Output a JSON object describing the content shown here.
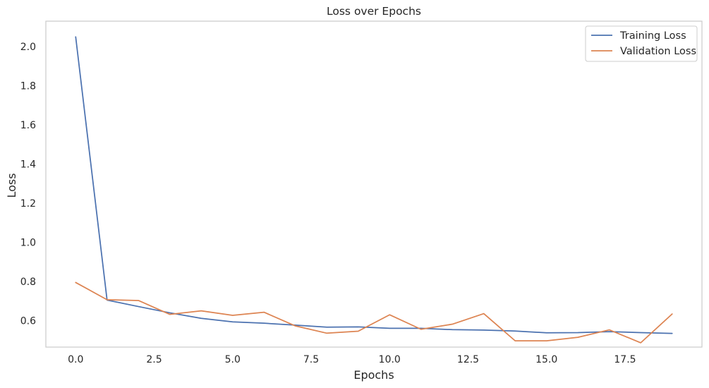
{
  "chart_data": {
    "type": "line",
    "title": "Loss over Epochs",
    "xlabel": "Epochs",
    "ylabel": "Loss",
    "xlim": [
      -0.95,
      19.95
    ],
    "ylim": [
      0.465,
      2.13
    ],
    "xticks": [
      0.0,
      2.5,
      5.0,
      7.5,
      10.0,
      12.5,
      15.0,
      17.5
    ],
    "xtick_labels": [
      "0.0",
      "2.5",
      "5.0",
      "7.5",
      "10.0",
      "12.5",
      "15.0",
      "17.5"
    ],
    "yticks": [
      0.6,
      0.8,
      1.0,
      1.2,
      1.4,
      1.6,
      1.8,
      2.0
    ],
    "ytick_labels": [
      "0.6",
      "0.8",
      "1.0",
      "1.2",
      "1.4",
      "1.6",
      "1.8",
      "2.0"
    ],
    "grid": false,
    "legend_position": "top-right",
    "x": [
      0,
      1,
      2,
      3,
      4,
      5,
      6,
      7,
      8,
      9,
      10,
      11,
      12,
      13,
      14,
      15,
      16,
      17,
      18,
      19
    ],
    "series": [
      {
        "name": "Training Loss",
        "color": "#4c72b0",
        "values": [
          2.05,
          0.705,
          0.672,
          0.64,
          0.612,
          0.594,
          0.587,
          0.577,
          0.567,
          0.568,
          0.561,
          0.561,
          0.554,
          0.552,
          0.547,
          0.538,
          0.539,
          0.544,
          0.539,
          0.535
        ]
      },
      {
        "name": "Validation Loss",
        "color": "#dd8452",
        "values": [
          0.795,
          0.707,
          0.703,
          0.632,
          0.65,
          0.627,
          0.643,
          0.573,
          0.536,
          0.546,
          0.63,
          0.556,
          0.582,
          0.636,
          0.497,
          0.497,
          0.515,
          0.553,
          0.487,
          0.634
        ]
      }
    ]
  }
}
